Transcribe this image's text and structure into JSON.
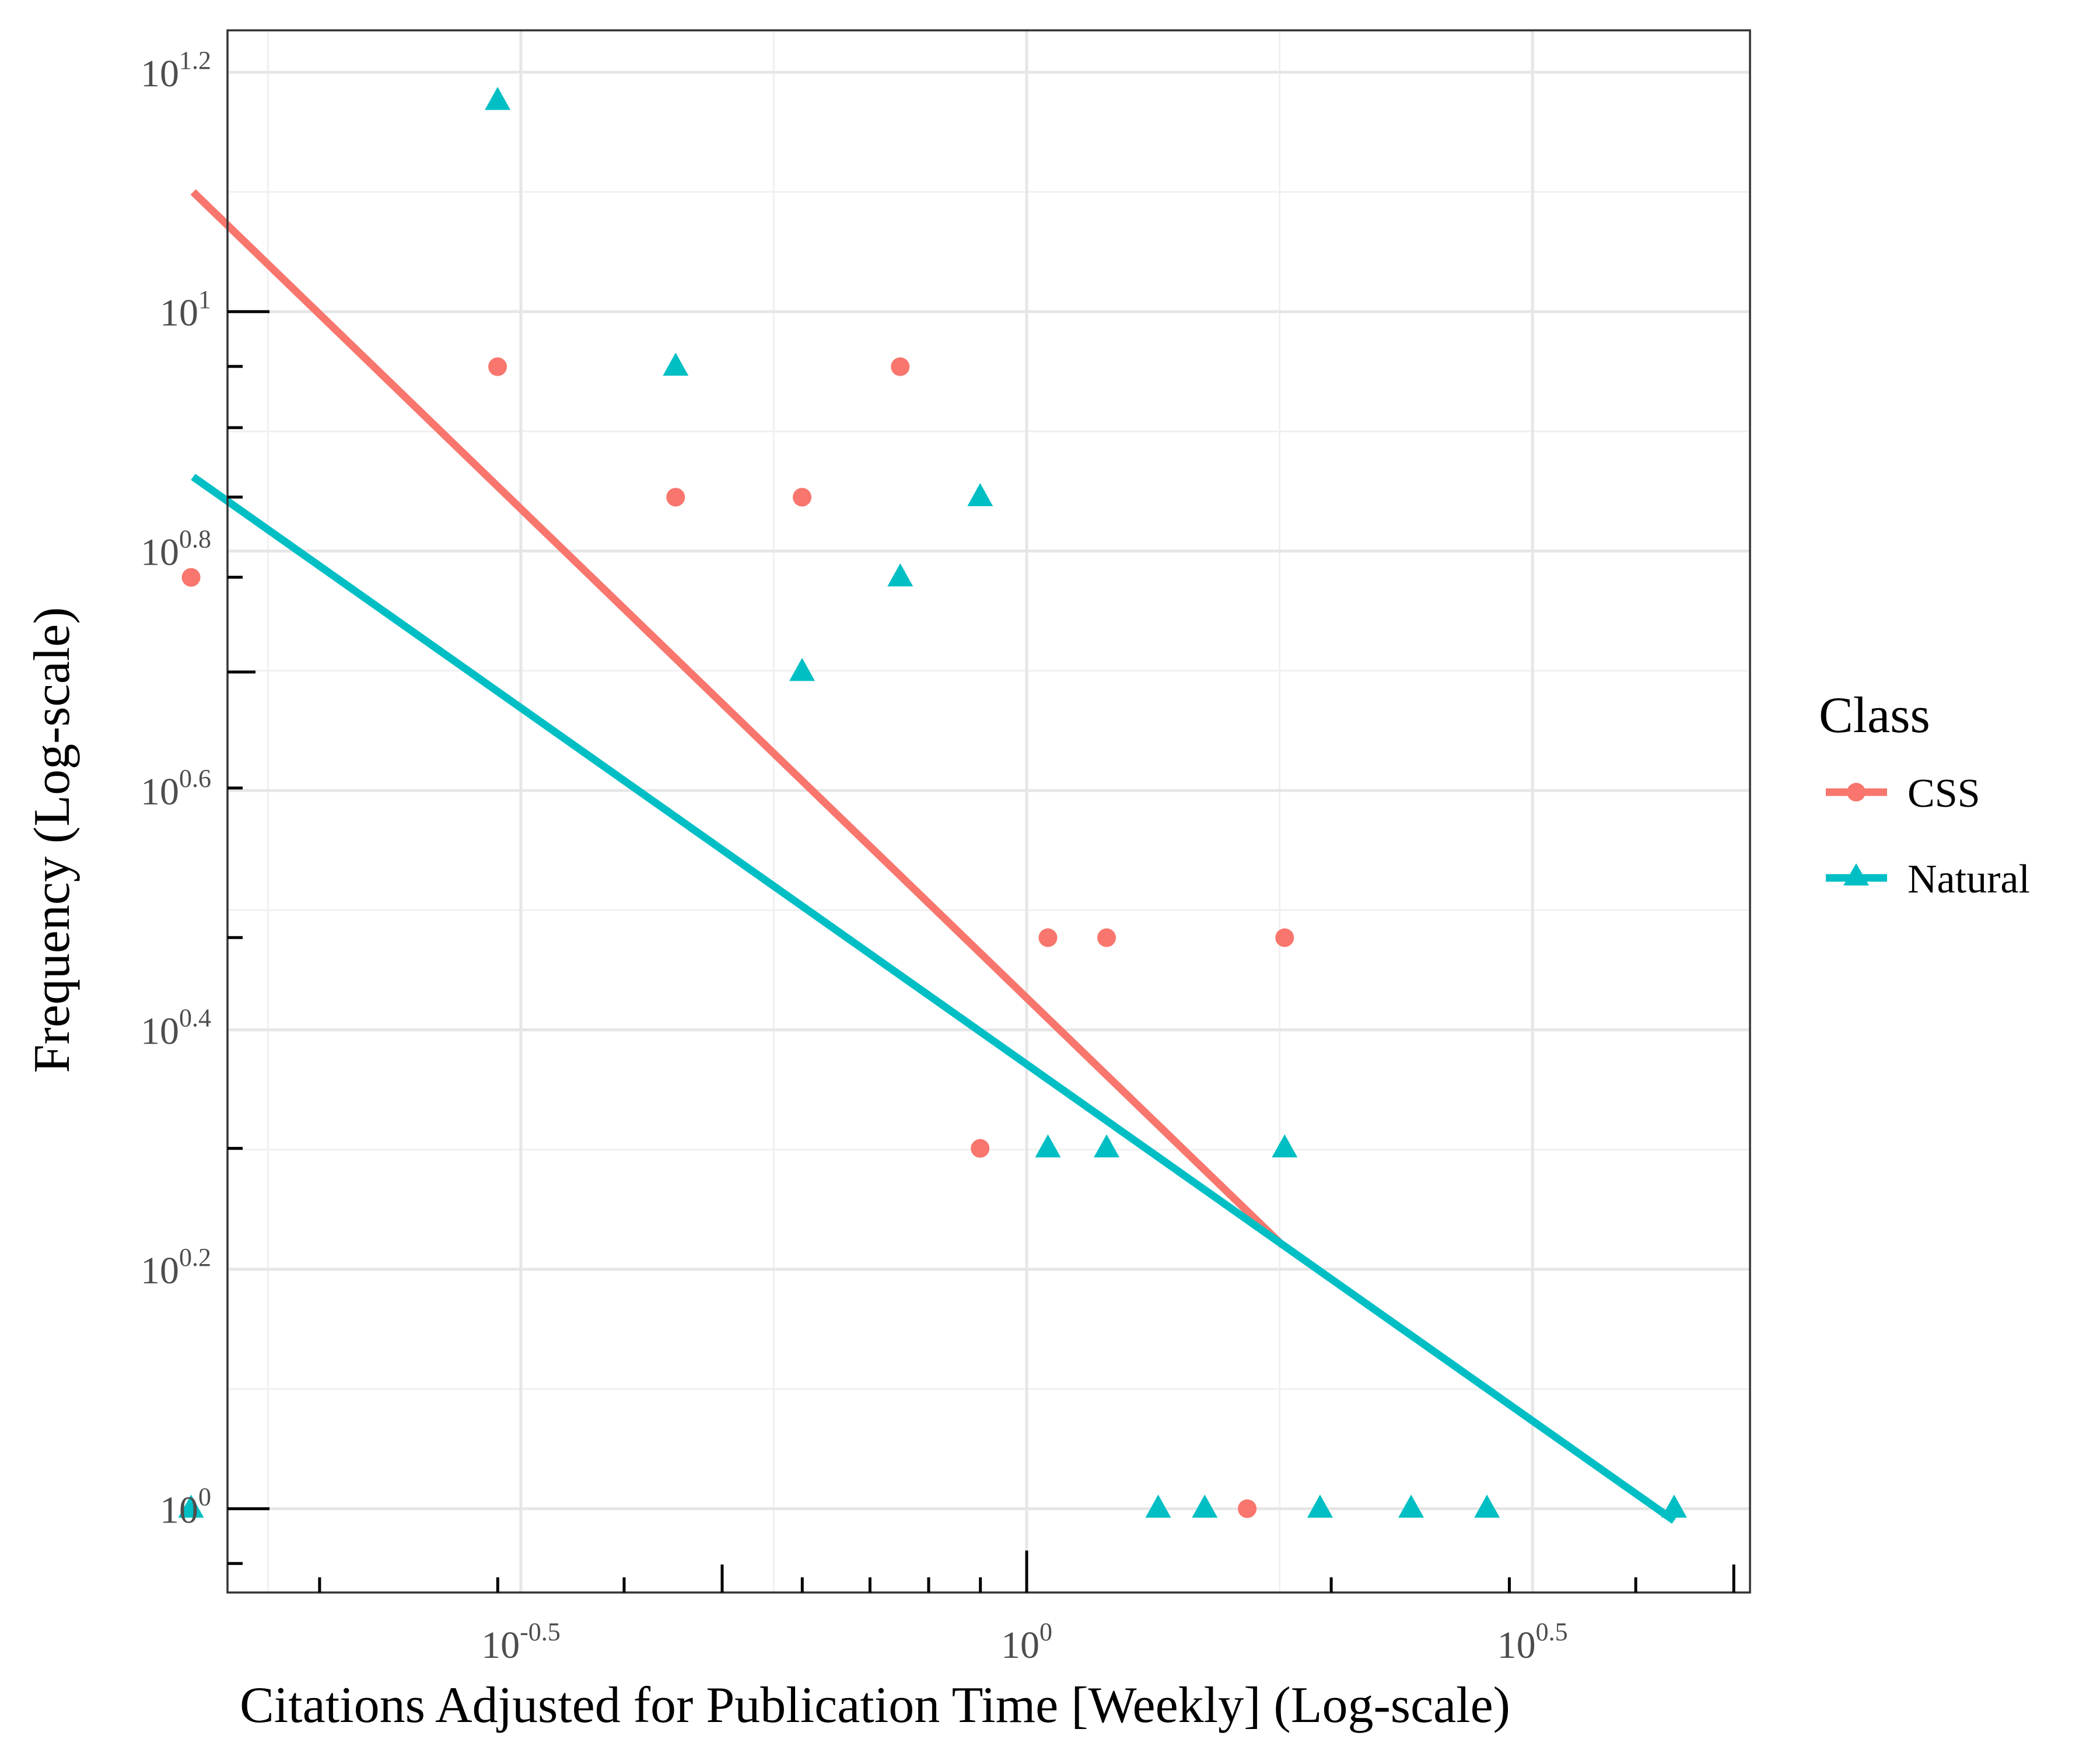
{
  "chart_data": {
    "type": "scatter",
    "xlabel": "Citations Adjusted for Publication Time [Weekly] (Log-scale)",
    "ylabel": "Frequency (Log-scale)",
    "x_scale": "log10",
    "y_scale": "log10",
    "xlim_log10": [
      -0.79,
      0.715
    ],
    "ylim_log10": [
      -0.07,
      1.235
    ],
    "x_ticks": [
      {
        "log10": -0.5,
        "base": "10",
        "exp": "-0.5"
      },
      {
        "log10": 0,
        "base": "10",
        "exp": "0"
      },
      {
        "log10": 0.5,
        "base": "10",
        "exp": "0.5"
      }
    ],
    "y_ticks": [
      {
        "log10": 0,
        "base": "10",
        "exp": "0"
      },
      {
        "log10": 0.2,
        "base": "10",
        "exp": "0.2"
      },
      {
        "log10": 0.4,
        "base": "10",
        "exp": "0.4"
      },
      {
        "log10": 0.6,
        "base": "10",
        "exp": "0.6"
      },
      {
        "log10": 0.8,
        "base": "10",
        "exp": "0.8"
      },
      {
        "log10": 1,
        "base": "10",
        "exp": "1"
      },
      {
        "log10": 1.2,
        "base": "10",
        "exp": "1.2"
      }
    ],
    "grid": true,
    "legend": {
      "title": "Class",
      "position": "right",
      "entries": [
        {
          "name": "CSS",
          "color": "#F8766D",
          "shape": "circle"
        },
        {
          "name": "Natural",
          "color": "#00BFC4",
          "shape": "triangle"
        }
      ]
    },
    "series": [
      {
        "name": "CSS",
        "color": "#F8766D",
        "shape": "circle",
        "points_log10": [
          [
            -0.826,
            0.778
          ],
          [
            -0.523,
            0.954
          ],
          [
            -0.347,
            0.845
          ],
          [
            -0.222,
            0.845
          ],
          [
            -0.125,
            0.954
          ],
          [
            -0.046,
            0.301
          ],
          [
            0.021,
            0.477
          ],
          [
            0.079,
            0.477
          ],
          [
            0.255,
            0.477
          ],
          [
            0.218,
            0.0
          ]
        ],
        "fit_line_log10": [
          [
            -0.824,
            1.1
          ],
          [
            0.253,
            0.22
          ]
        ]
      },
      {
        "name": "Natural",
        "color": "#00BFC4",
        "shape": "triangle",
        "points_log10": [
          [
            -0.826,
            0.0
          ],
          [
            -0.523,
            1.176
          ],
          [
            -0.347,
            0.954
          ],
          [
            -0.222,
            0.699
          ],
          [
            -0.125,
            0.778
          ],
          [
            -0.046,
            0.845
          ],
          [
            0.021,
            0.301
          ],
          [
            0.079,
            0.301
          ],
          [
            0.255,
            0.301
          ],
          [
            0.13,
            0.0
          ],
          [
            0.176,
            0.0
          ],
          [
            0.29,
            0.0
          ],
          [
            0.38,
            0.0
          ],
          [
            0.455,
            0.0
          ],
          [
            0.64,
            0.0
          ]
        ],
        "fit_line_log10": [
          [
            -0.824,
            0.862
          ],
          [
            0.64,
            -0.01
          ]
        ]
      }
    ]
  }
}
